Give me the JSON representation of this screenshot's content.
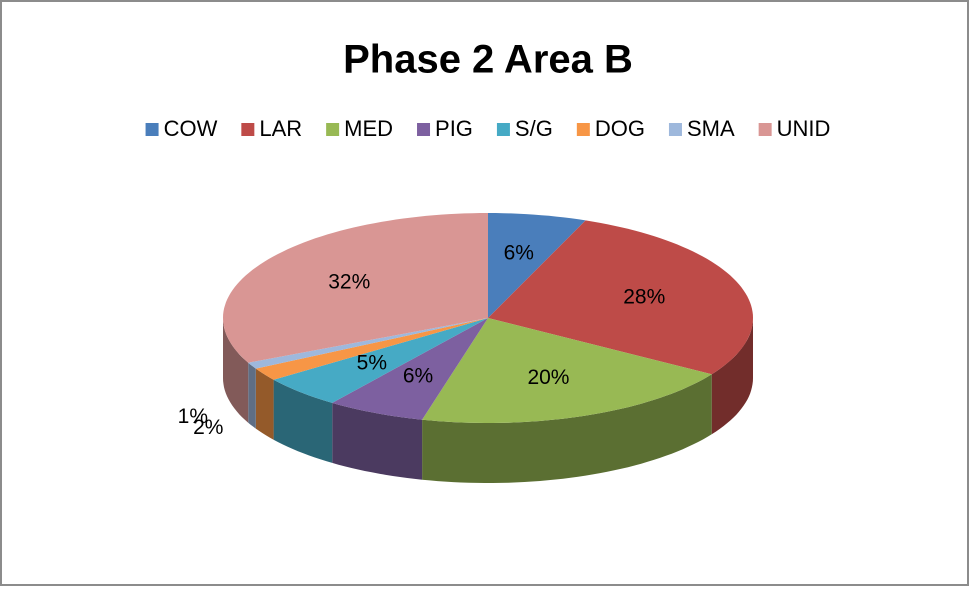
{
  "chart_data": {
    "type": "pie",
    "title": "Phase 2 Area B",
    "categories": [
      "COW",
      "LAR",
      "MED",
      "PIG",
      "S/G",
      "DOG",
      "SMA",
      "UNID"
    ],
    "values": [
      6,
      28,
      20,
      6,
      5,
      2,
      1,
      32
    ],
    "value_labels": [
      "6%",
      "28%",
      "20%",
      "6%",
      "5%",
      "2%",
      "1%",
      "32%"
    ],
    "colors": [
      "#4a7ebb",
      "#be4b48",
      "#98b954",
      "#7d60a0",
      "#46aac5",
      "#f79646",
      "#9eb8dc",
      "#d99694"
    ],
    "legend": "top",
    "3d": true
  }
}
